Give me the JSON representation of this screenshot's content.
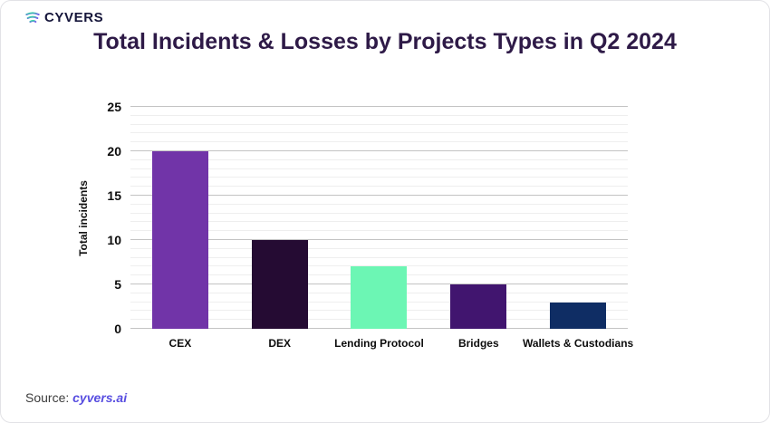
{
  "logo": {
    "text": "CYVERS",
    "icon": "cyvers-swirl-icon",
    "icon_colors": [
      "#2fd9a2",
      "#7b5cf0"
    ]
  },
  "title": "Total Incidents & Losses by Projects Types in Q2 2024",
  "source": {
    "label": "Source:",
    "link_text": "cyvers.ai"
  },
  "chart_data": {
    "type": "bar",
    "title": "Total Incidents & Losses by Projects Types in Q2 2024",
    "categories": [
      "CEX",
      "DEX",
      "Lending Protocol",
      "Bridges",
      "Wallets & Custodians"
    ],
    "values": [
      20,
      10,
      7,
      5,
      3
    ],
    "bar_colors": [
      "#7134A8",
      "#250B33",
      "#6CF6B4",
      "#41156F",
      "#0F2D64"
    ],
    "xlabel": "",
    "ylabel": "Total incidents",
    "ylim": [
      0,
      25
    ],
    "yticks": [
      0,
      5,
      10,
      15,
      20,
      25
    ],
    "grid": "horizontal minor every 1 unit, major every 5 units",
    "legend": "none"
  },
  "colors": {
    "title_text": "#2e1a47",
    "axis_text": "#0d0d0d",
    "gridline_minor": "#eeeeee",
    "gridline_major": "#c3c3c3",
    "source_link": "#584ee0",
    "card_border": "#e2e2e6"
  }
}
